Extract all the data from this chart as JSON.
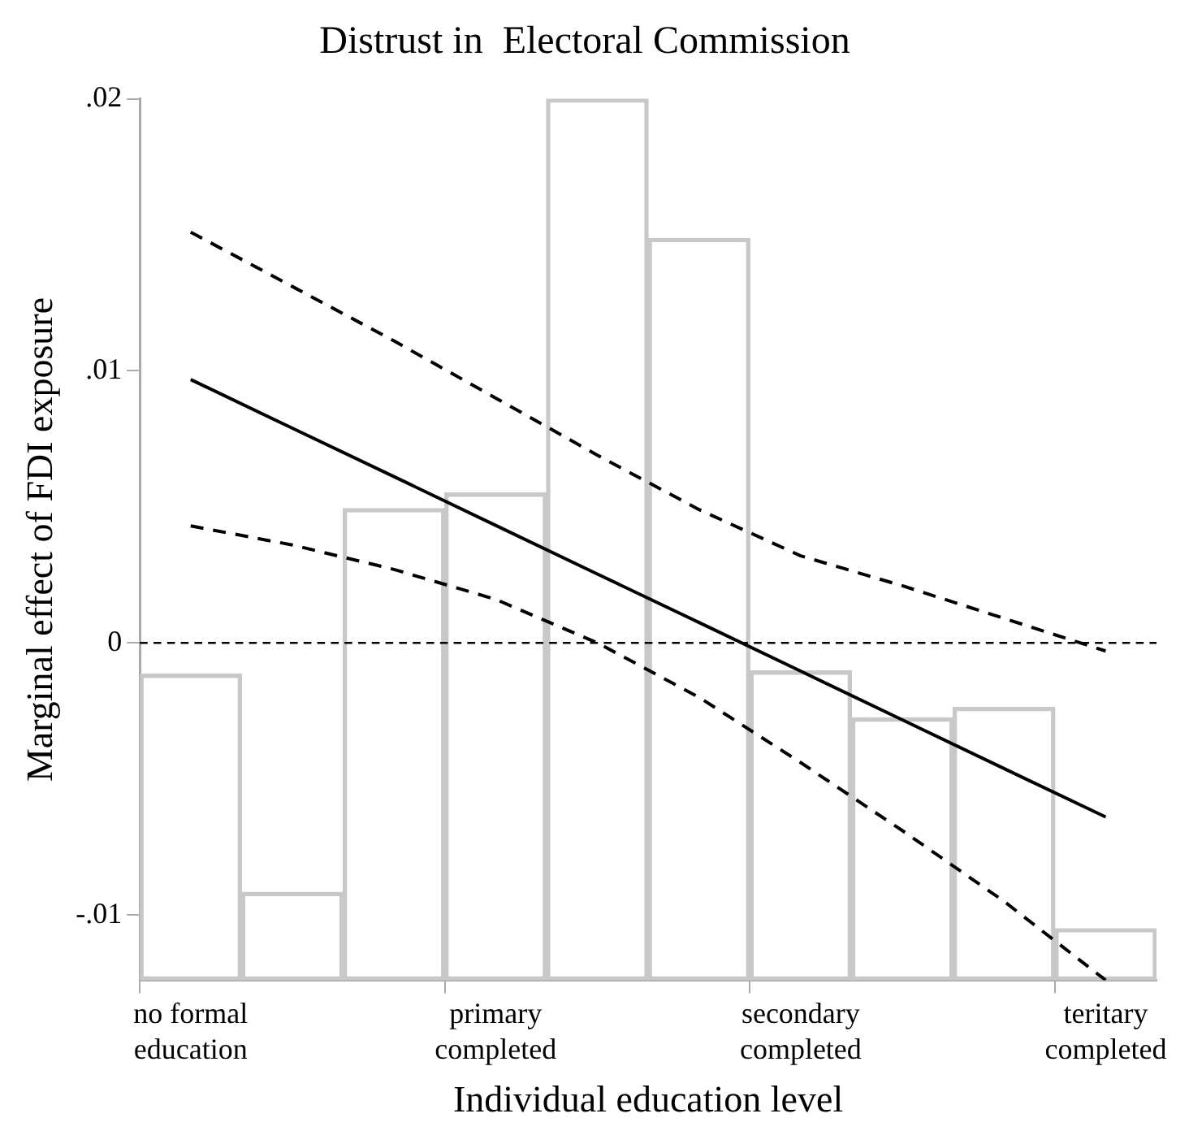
{
  "chart_data": {
    "type": "bar",
    "title": "Distrust in  Electoral Commission",
    "xlabel": "Individual education level",
    "ylabel": "Marginal effect of FDI exposure",
    "ylim": [
      -0.0124,
      0.02
    ],
    "categories": [
      "no formal education",
      null,
      null,
      "primary completed",
      null,
      null,
      "secondary completed",
      null,
      null,
      "teritary completed"
    ],
    "yticks": [
      {
        "value": -0.01,
        "label": "-.01"
      },
      {
        "value": 0,
        "label": "0"
      },
      {
        "value": 0.01,
        "label": ".01"
      },
      {
        "value": 0.02,
        "label": ".02"
      }
    ],
    "grid": false,
    "ref_lines": [
      {
        "axis": "y",
        "value": 0,
        "color": "#000000",
        "line_style": "dashed"
      }
    ],
    "series": [
      {
        "color": "#c8c8c8",
        "base": [
          -0.0124,
          -0.0124,
          -0.0124,
          -0.0124,
          -0.0124,
          -0.0124,
          -0.0124,
          -0.0124,
          -0.0124,
          -0.0124
        ],
        "values": [
          0.01125,
          0.00323,
          0.01734,
          0.01791,
          0.0324,
          0.02727,
          0.01137,
          0.00964,
          0.01003,
          0.0019
        ]
      },
      {
        "type": "line",
        "color": "#000000",
        "line_style": "solid",
        "values": [
          0.00968,
          0.00789,
          0.00611,
          0.00432,
          0.00253,
          0.00075,
          -0.00104,
          -0.00283,
          -0.00462,
          -0.0064
        ]
      },
      {
        "type": "line",
        "color": "#000000",
        "line_style": "dashed",
        "values": [
          0.0043,
          0.0036,
          0.0027,
          0.0016,
          0.0,
          -0.002,
          -0.0044,
          -0.0069,
          -0.0095,
          -0.0124
        ]
      },
      {
        "type": "line",
        "color": "#000000",
        "line_style": "dashed",
        "values": [
          0.0151,
          0.0131,
          0.0111,
          0.009,
          0.0069,
          0.0049,
          0.0032,
          0.0021,
          0.0009,
          -0.0003
        ]
      }
    ]
  }
}
